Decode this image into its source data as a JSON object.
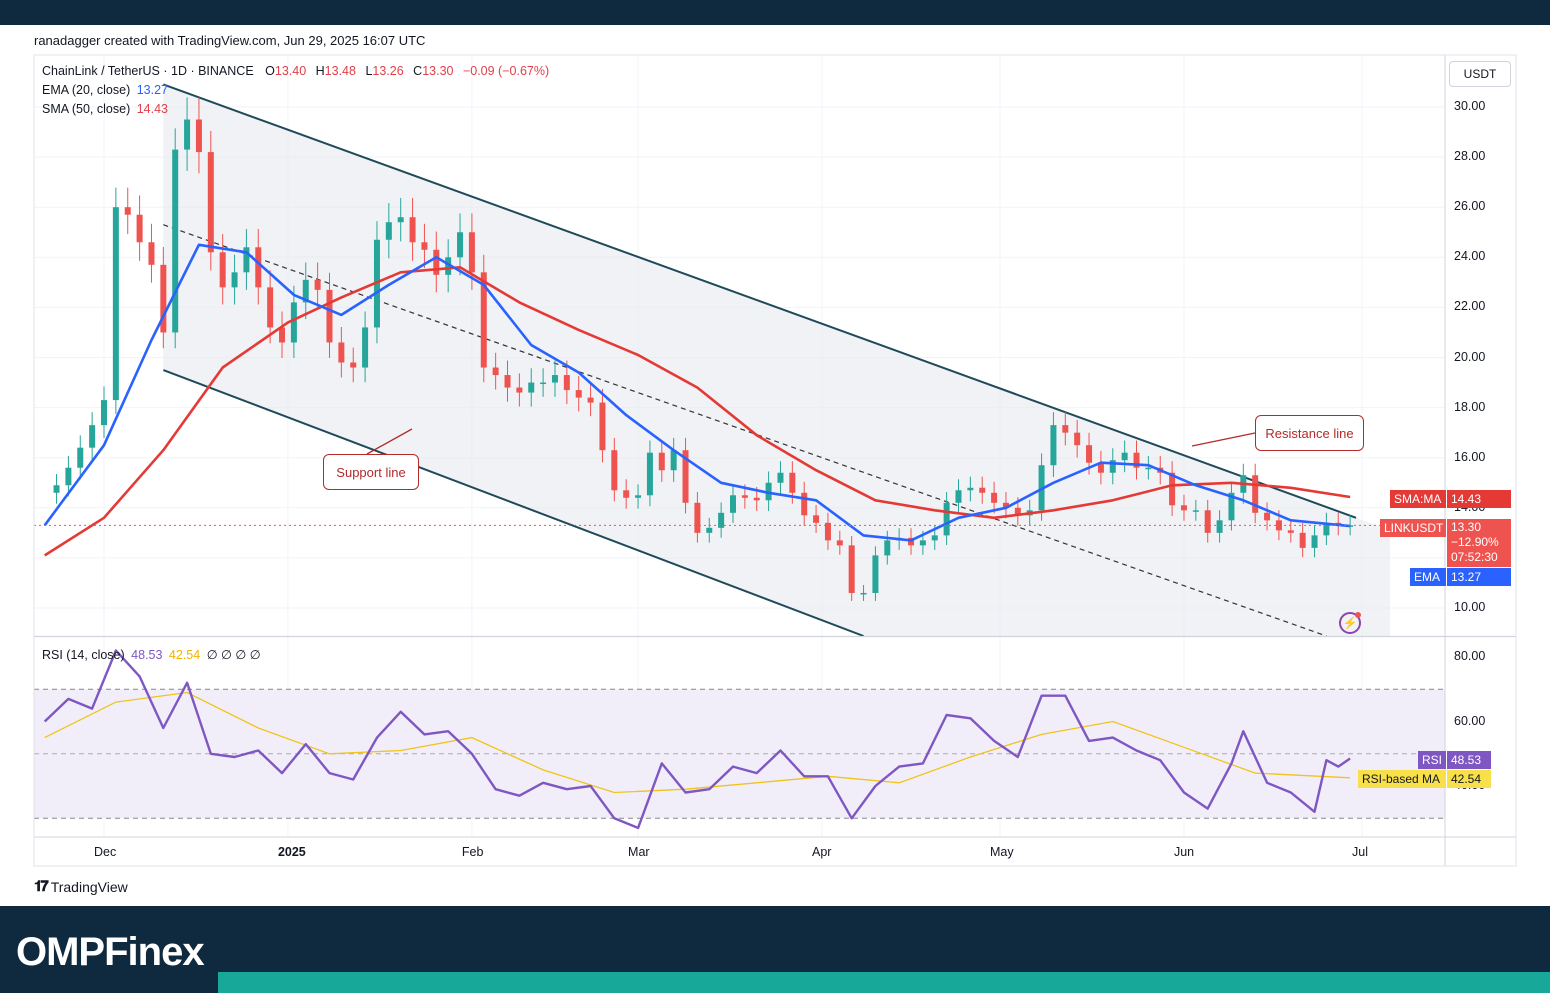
{
  "header": {
    "credit": "ranadagger created with TradingView.com, Jun 29, 2025 16:07 UTC"
  },
  "legend": {
    "symbol": "ChainLink / TetherUS · 1D · BINANCE",
    "o_label": "O",
    "o_value": "13.40",
    "h_label": "H",
    "h_value": "13.48",
    "l_label": "L",
    "l_value": "13.26",
    "c_label": "C",
    "c_value": "13.30",
    "change": "−0.09 (−0.67%)",
    "ema_label": "EMA (20, close)",
    "ema_value": "13.27",
    "sma_label": "SMA (50, close)",
    "sma_value": "14.43",
    "rsi_label": "RSI (14, close)",
    "rsi_value": "48.53",
    "rsi_ma_value": "42.54",
    "rsi_extra": "∅ ∅ ∅ ∅"
  },
  "currency_button": "USDT",
  "price_axis": [
    "30.00",
    "28.00",
    "26.00",
    "24.00",
    "22.00",
    "20.00",
    "18.00",
    "16.00",
    "14.00",
    "10.00"
  ],
  "rsi_axis": [
    "80.00",
    "60.00",
    "40.00"
  ],
  "time_axis": [
    {
      "label": "Dec",
      "bold": false
    },
    {
      "label": "2025",
      "bold": true
    },
    {
      "label": "Feb",
      "bold": false
    },
    {
      "label": "Mar",
      "bold": false
    },
    {
      "label": "Apr",
      "bold": false
    },
    {
      "label": "May",
      "bold": false
    },
    {
      "label": "Jun",
      "bold": false
    },
    {
      "label": "Jul",
      "bold": false
    }
  ],
  "tags": {
    "sma_name": "SMA:MA",
    "sma_value": "14.43",
    "price_name": "LINKUSDT",
    "price_value": "13.30",
    "price_change": "−12.90%",
    "countdown": "07:52:30",
    "ema_name": "EMA",
    "ema_value": "13.27",
    "rsi_name": "RSI",
    "rsi_value": "48.53",
    "rsi_ma_name": "RSI-based MA",
    "rsi_ma_value": "42.54"
  },
  "annotations": {
    "support": "Support line",
    "resistance": "Resistance line"
  },
  "footer": {
    "tradingview": "TradingView",
    "brand": "OMPFinex"
  },
  "colors": {
    "bull": "#26a69a",
    "bear": "#ef5350",
    "ema": "#2962ff",
    "sma": "#e53935",
    "rsi": "#7e57c2",
    "rsi_ma": "#f0c419",
    "channel": "#1e4a5a",
    "accent": "#17a89a",
    "navy": "#0f2a3f"
  },
  "chart_data": {
    "type": "candlestick",
    "symbol": "LINKUSDT",
    "timeframe": "1D",
    "x_range": [
      "2024-11-21",
      "2025-07-10"
    ],
    "ylim": [
      9.0,
      31.0
    ],
    "rsi_ylim": [
      20,
      90
    ],
    "rsi_bands": [
      70,
      50,
      30
    ],
    "channel": {
      "upper": [
        [
          "2024-12-11",
          30.9
        ],
        [
          "2025-06-30",
          13.6
        ]
      ],
      "lower": [
        [
          "2024-12-11",
          19.5
        ],
        [
          "2025-04-08",
          9.0
        ]
      ],
      "mid": [
        [
          "2024-12-11",
          25.3
        ],
        [
          "2025-06-25",
          9.0
        ]
      ]
    },
    "ohlc_daily_close": [
      [
        "2024-11-21",
        14.6
      ],
      [
        "2024-11-23",
        14.9
      ],
      [
        "2024-11-25",
        15.6
      ],
      [
        "2024-11-27",
        16.4
      ],
      [
        "2024-11-29",
        17.3
      ],
      [
        "2024-12-01",
        18.3
      ],
      [
        "2024-12-03",
        26.0
      ],
      [
        "2024-12-05",
        25.7
      ],
      [
        "2024-12-07",
        24.6
      ],
      [
        "2024-12-09",
        23.7
      ],
      [
        "2024-12-11",
        21.0
      ],
      [
        "2024-12-13",
        28.3
      ],
      [
        "2024-12-15",
        29.5
      ],
      [
        "2024-12-17",
        28.2
      ],
      [
        "2024-12-19",
        24.2
      ],
      [
        "2024-12-21",
        22.8
      ],
      [
        "2024-12-23",
        23.4
      ],
      [
        "2024-12-25",
        24.4
      ],
      [
        "2024-12-27",
        22.8
      ],
      [
        "2024-12-29",
        21.2
      ],
      [
        "2024-12-31",
        20.6
      ],
      [
        "2025-01-02",
        22.2
      ],
      [
        "2025-01-04",
        23.1
      ],
      [
        "2025-01-06",
        22.7
      ],
      [
        "2025-01-08",
        20.6
      ],
      [
        "2025-01-10",
        19.8
      ],
      [
        "2025-01-12",
        19.6
      ],
      [
        "2025-01-14",
        21.2
      ],
      [
        "2025-01-16",
        24.7
      ],
      [
        "2025-01-18",
        25.4
      ],
      [
        "2025-01-20",
        25.6
      ],
      [
        "2025-01-22",
        24.6
      ],
      [
        "2025-01-24",
        24.3
      ],
      [
        "2025-01-26",
        23.3
      ],
      [
        "2025-01-28",
        24.0
      ],
      [
        "2025-01-30",
        25.0
      ],
      [
        "2025-02-01",
        23.4
      ],
      [
        "2025-02-03",
        19.6
      ],
      [
        "2025-02-05",
        19.3
      ],
      [
        "2025-02-07",
        18.8
      ],
      [
        "2025-02-09",
        18.6
      ],
      [
        "2025-02-11",
        19.0
      ],
      [
        "2025-02-13",
        19.0
      ],
      [
        "2025-02-15",
        19.3
      ],
      [
        "2025-02-17",
        18.7
      ],
      [
        "2025-02-19",
        18.4
      ],
      [
        "2025-02-21",
        18.2
      ],
      [
        "2025-02-23",
        16.3
      ],
      [
        "2025-02-25",
        14.7
      ],
      [
        "2025-02-27",
        14.4
      ],
      [
        "2025-03-01",
        14.5
      ],
      [
        "2025-03-03",
        16.2
      ],
      [
        "2025-03-05",
        15.5
      ],
      [
        "2025-03-07",
        16.3
      ],
      [
        "2025-03-09",
        14.2
      ],
      [
        "2025-03-11",
        13.0
      ],
      [
        "2025-03-13",
        13.2
      ],
      [
        "2025-03-15",
        13.8
      ],
      [
        "2025-03-17",
        14.5
      ],
      [
        "2025-03-19",
        14.4
      ],
      [
        "2025-03-21",
        14.3
      ],
      [
        "2025-03-23",
        15.0
      ],
      [
        "2025-03-25",
        15.4
      ],
      [
        "2025-03-27",
        14.6
      ],
      [
        "2025-03-29",
        13.7
      ],
      [
        "2025-03-31",
        13.4
      ],
      [
        "2025-04-02",
        12.7
      ],
      [
        "2025-04-04",
        12.5
      ],
      [
        "2025-04-06",
        10.6
      ],
      [
        "2025-04-08",
        10.6
      ],
      [
        "2025-04-10",
        12.1
      ],
      [
        "2025-04-12",
        12.7
      ],
      [
        "2025-04-14",
        12.8
      ],
      [
        "2025-04-16",
        12.5
      ],
      [
        "2025-04-18",
        12.7
      ],
      [
        "2025-04-20",
        12.9
      ],
      [
        "2025-04-22",
        14.2
      ],
      [
        "2025-04-24",
        14.7
      ],
      [
        "2025-04-26",
        14.8
      ],
      [
        "2025-04-28",
        14.6
      ],
      [
        "2025-04-30",
        14.2
      ],
      [
        "2025-05-02",
        14.0
      ],
      [
        "2025-05-04",
        13.7
      ],
      [
        "2025-05-06",
        13.9
      ],
      [
        "2025-05-08",
        15.7
      ],
      [
        "2025-05-10",
        17.3
      ],
      [
        "2025-05-12",
        17.0
      ],
      [
        "2025-05-14",
        16.5
      ],
      [
        "2025-05-16",
        15.8
      ],
      [
        "2025-05-18",
        15.4
      ],
      [
        "2025-05-20",
        15.9
      ],
      [
        "2025-05-22",
        16.2
      ],
      [
        "2025-05-24",
        15.6
      ],
      [
        "2025-05-26",
        15.6
      ],
      [
        "2025-05-28",
        15.4
      ],
      [
        "2025-05-30",
        14.1
      ],
      [
        "2025-06-01",
        13.9
      ],
      [
        "2025-06-03",
        13.9
      ],
      [
        "2025-06-05",
        13.0
      ],
      [
        "2025-06-07",
        13.5
      ],
      [
        "2025-06-09",
        14.6
      ],
      [
        "2025-06-11",
        15.3
      ],
      [
        "2025-06-13",
        13.8
      ],
      [
        "2025-06-15",
        13.5
      ],
      [
        "2025-06-17",
        13.1
      ],
      [
        "2025-06-19",
        13.0
      ],
      [
        "2025-06-21",
        12.4
      ],
      [
        "2025-06-23",
        12.9
      ],
      [
        "2025-06-25",
        13.4
      ],
      [
        "2025-06-27",
        13.3
      ],
      [
        "2025-06-29",
        13.3
      ]
    ],
    "ema20": [
      [
        "2024-11-21",
        13.3
      ],
      [
        "2024-12-01",
        16.5
      ],
      [
        "2024-12-09",
        20.7
      ],
      [
        "2024-12-17",
        24.5
      ],
      [
        "2024-12-25",
        24.2
      ],
      [
        "2025-01-02",
        22.5
      ],
      [
        "2025-01-10",
        21.7
      ],
      [
        "2025-01-18",
        22.9
      ],
      [
        "2025-01-26",
        24.0
      ],
      [
        "2025-02-03",
        22.9
      ],
      [
        "2025-02-11",
        20.5
      ],
      [
        "2025-02-19",
        19.4
      ],
      [
        "2025-02-27",
        17.7
      ],
      [
        "2025-03-07",
        16.3
      ],
      [
        "2025-03-15",
        15.0
      ],
      [
        "2025-03-23",
        14.6
      ],
      [
        "2025-03-31",
        14.3
      ],
      [
        "2025-04-08",
        12.9
      ],
      [
        "2025-04-16",
        12.7
      ],
      [
        "2025-04-24",
        13.6
      ],
      [
        "2025-05-02",
        14.0
      ],
      [
        "2025-05-10",
        15.0
      ],
      [
        "2025-05-18",
        15.8
      ],
      [
        "2025-05-26",
        15.7
      ],
      [
        "2025-06-03",
        14.9
      ],
      [
        "2025-06-11",
        14.3
      ],
      [
        "2025-06-19",
        13.5
      ],
      [
        "2025-06-29",
        13.27
      ]
    ],
    "sma50": [
      [
        "2024-11-21",
        12.1
      ],
      [
        "2024-12-01",
        13.6
      ],
      [
        "2024-12-11",
        16.3
      ],
      [
        "2024-12-21",
        19.6
      ],
      [
        "2025-01-01",
        21.4
      ],
      [
        "2025-01-10",
        22.4
      ],
      [
        "2025-01-20",
        23.4
      ],
      [
        "2025-01-30",
        23.6
      ],
      [
        "2025-02-09",
        22.2
      ],
      [
        "2025-02-19",
        21.1
      ],
      [
        "2025-03-01",
        20.1
      ],
      [
        "2025-03-11",
        18.8
      ],
      [
        "2025-03-21",
        16.9
      ],
      [
        "2025-03-31",
        15.5
      ],
      [
        "2025-04-10",
        14.3
      ],
      [
        "2025-04-20",
        13.9
      ],
      [
        "2025-04-30",
        13.6
      ],
      [
        "2025-05-10",
        13.9
      ],
      [
        "2025-05-20",
        14.3
      ],
      [
        "2025-05-30",
        14.9
      ],
      [
        "2025-06-09",
        15.0
      ],
      [
        "2025-06-19",
        14.8
      ],
      [
        "2025-06-29",
        14.43
      ]
    ],
    "rsi14": [
      [
        "2024-11-21",
        60
      ],
      [
        "2024-11-25",
        67
      ],
      [
        "2024-11-29",
        64
      ],
      [
        "2024-12-03",
        82
      ],
      [
        "2024-12-07",
        74
      ],
      [
        "2024-12-11",
        58
      ],
      [
        "2024-12-15",
        72
      ],
      [
        "2024-12-19",
        50
      ],
      [
        "2024-12-23",
        49
      ],
      [
        "2024-12-27",
        51
      ],
      [
        "2024-12-31",
        44
      ],
      [
        "2025-01-04",
        53
      ],
      [
        "2025-01-08",
        44
      ],
      [
        "2025-01-12",
        42
      ],
      [
        "2025-01-16",
        55
      ],
      [
        "2025-01-20",
        63
      ],
      [
        "2025-01-24",
        56
      ],
      [
        "2025-01-28",
        57
      ],
      [
        "2025-02-01",
        50
      ],
      [
        "2025-02-05",
        39
      ],
      [
        "2025-02-09",
        37
      ],
      [
        "2025-02-13",
        41
      ],
      [
        "2025-02-17",
        39
      ],
      [
        "2025-02-21",
        40
      ],
      [
        "2025-02-25",
        30
      ],
      [
        "2025-03-01",
        27
      ],
      [
        "2025-03-05",
        47
      ],
      [
        "2025-03-09",
        38
      ],
      [
        "2025-03-13",
        39
      ],
      [
        "2025-03-17",
        46
      ],
      [
        "2025-03-21",
        44
      ],
      [
        "2025-03-25",
        51
      ],
      [
        "2025-03-29",
        43
      ],
      [
        "2025-04-02",
        43
      ],
      [
        "2025-04-06",
        30
      ],
      [
        "2025-04-10",
        40
      ],
      [
        "2025-04-14",
        46
      ],
      [
        "2025-04-18",
        47
      ],
      [
        "2025-04-22",
        62
      ],
      [
        "2025-04-26",
        61
      ],
      [
        "2025-04-30",
        54
      ],
      [
        "2025-05-04",
        49
      ],
      [
        "2025-05-08",
        68
      ],
      [
        "2025-05-12",
        68
      ],
      [
        "2025-05-16",
        54
      ],
      [
        "2025-05-20",
        55
      ],
      [
        "2025-05-24",
        51
      ],
      [
        "2025-05-28",
        48
      ],
      [
        "2025-06-01",
        38
      ],
      [
        "2025-06-05",
        33
      ],
      [
        "2025-06-09",
        47
      ],
      [
        "2025-06-11",
        57
      ],
      [
        "2025-06-15",
        41
      ],
      [
        "2025-06-19",
        38
      ],
      [
        "2025-06-23",
        32
      ],
      [
        "2025-06-25",
        48
      ],
      [
        "2025-06-27",
        46
      ],
      [
        "2025-06-29",
        48.53
      ]
    ],
    "rsi_ma": [
      [
        "2024-11-21",
        55
      ],
      [
        "2024-12-03",
        66
      ],
      [
        "2024-12-15",
        69
      ],
      [
        "2024-12-27",
        58
      ],
      [
        "2025-01-08",
        50
      ],
      [
        "2025-01-20",
        51
      ],
      [
        "2025-02-01",
        55
      ],
      [
        "2025-02-13",
        45
      ],
      [
        "2025-02-25",
        38
      ],
      [
        "2025-03-09",
        39
      ],
      [
        "2025-03-21",
        41
      ],
      [
        "2025-04-02",
        43
      ],
      [
        "2025-04-14",
        41
      ],
      [
        "2025-04-26",
        49
      ],
      [
        "2025-05-08",
        56
      ],
      [
        "2025-05-20",
        60
      ],
      [
        "2025-06-01",
        52
      ],
      [
        "2025-06-13",
        44
      ],
      [
        "2025-06-29",
        42.54
      ]
    ]
  }
}
